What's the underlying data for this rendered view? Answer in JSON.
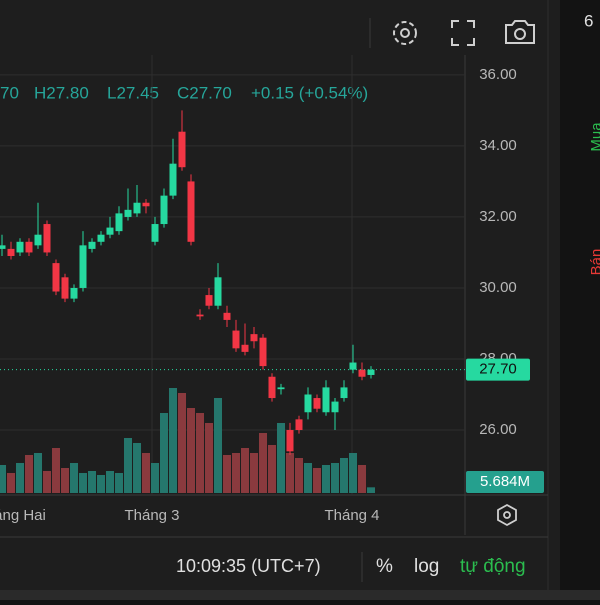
{
  "chart_data": {
    "type": "candlestick",
    "header": [
      "70",
      "H27.80",
      "L27.45",
      "C27.70",
      "+0.15 (+0.54%)"
    ],
    "categories": [
      "áng Hai",
      "Tháng 3",
      "Tháng 4"
    ],
    "open": [
      31.1,
      31.1,
      31.0,
      31.3,
      31.2,
      31.8,
      30.7,
      30.3,
      29.7,
      30.0,
      31.1,
      31.3,
      31.5,
      31.6,
      32.0,
      32.1,
      32.4,
      31.3,
      31.8,
      32.6,
      34.4,
      33.0,
      29.25,
      29.8,
      29.5,
      29.3,
      28.8,
      28.4,
      28.7,
      28.6,
      27.5,
      27.15,
      26.0,
      26.3,
      26.5,
      26.9,
      26.5,
      26.5,
      26.9,
      27.7,
      27.7,
      27.55
    ],
    "high": [
      31.5,
      31.3,
      31.4,
      31.4,
      32.4,
      31.9,
      30.8,
      30.4,
      30.1,
      31.6,
      31.4,
      31.6,
      32.0,
      32.3,
      32.8,
      32.9,
      32.5,
      32.0,
      32.8,
      34.2,
      35.0,
      33.2,
      29.4,
      30.0,
      30.7,
      29.5,
      29.1,
      29.0,
      28.9,
      28.7,
      27.6,
      27.3,
      26.2,
      26.4,
      27.2,
      27.0,
      27.4,
      26.9,
      27.4,
      28.4,
      27.9,
      27.8
    ],
    "low": [
      30.9,
      30.8,
      30.9,
      30.9,
      31.1,
      30.9,
      29.8,
      29.6,
      29.6,
      29.9,
      31.0,
      31.2,
      31.4,
      31.5,
      31.9,
      32.0,
      32.1,
      31.2,
      31.7,
      32.5,
      33.3,
      31.2,
      29.1,
      29.4,
      29.4,
      28.9,
      28.2,
      28.1,
      28.3,
      27.7,
      26.8,
      27.0,
      25.3,
      25.9,
      26.3,
      26.5,
      26.4,
      26.0,
      26.8,
      27.6,
      27.4,
      27.45
    ],
    "close": [
      31.2,
      30.9,
      31.3,
      31.0,
      31.5,
      31.0,
      29.9,
      29.7,
      30.0,
      31.2,
      31.3,
      31.5,
      31.7,
      32.1,
      32.2,
      32.4,
      32.3,
      31.8,
      32.6,
      33.5,
      33.4,
      31.3,
      29.2,
      29.5,
      30.3,
      29.1,
      28.3,
      28.2,
      28.5,
      27.8,
      26.9,
      27.2,
      25.4,
      26.0,
      27.0,
      26.6,
      27.2,
      26.8,
      27.2,
      27.9,
      27.5,
      27.7
    ],
    "volume": [
      28,
      20,
      30,
      38,
      40,
      22,
      45,
      25,
      30,
      20,
      22,
      18,
      22,
      20,
      55,
      50,
      40,
      30,
      80,
      105,
      100,
      85,
      80,
      70,
      95,
      38,
      40,
      45,
      40,
      60,
      48,
      70,
      40,
      35,
      30,
      25,
      28,
      30,
      35,
      40,
      28,
      5.684
    ],
    "up_color": "#26d9a0",
    "down_color": "#f23645",
    "up_volume_color": "#25776d",
    "down_volume_color": "#8a3a3e",
    "ylim": [
      24.17,
      36.56
    ],
    "yticks": [
      {
        "value": 26,
        "label": "26.00"
      },
      {
        "value": 28,
        "label": "28.00"
      },
      {
        "value": 30,
        "label": "30.00"
      },
      {
        "value": 32,
        "label": "32.00"
      },
      {
        "value": 34,
        "label": "34.00"
      },
      {
        "value": 36,
        "label": "36.00"
      }
    ],
    "volume_lim": [
      0,
      115
    ],
    "last_price": {
      "value": 27.7,
      "label": "27.70"
    },
    "last_volume": {
      "value": 5.684,
      "label": "5.684M"
    },
    "grid": true
  },
  "footer": {
    "time": "10:09:35 (UTC+7)",
    "percent": "%",
    "log": "log",
    "auto": "tự động"
  },
  "side_panel": {
    "value": "6",
    "buy": "Mua",
    "sell": "Bán"
  }
}
